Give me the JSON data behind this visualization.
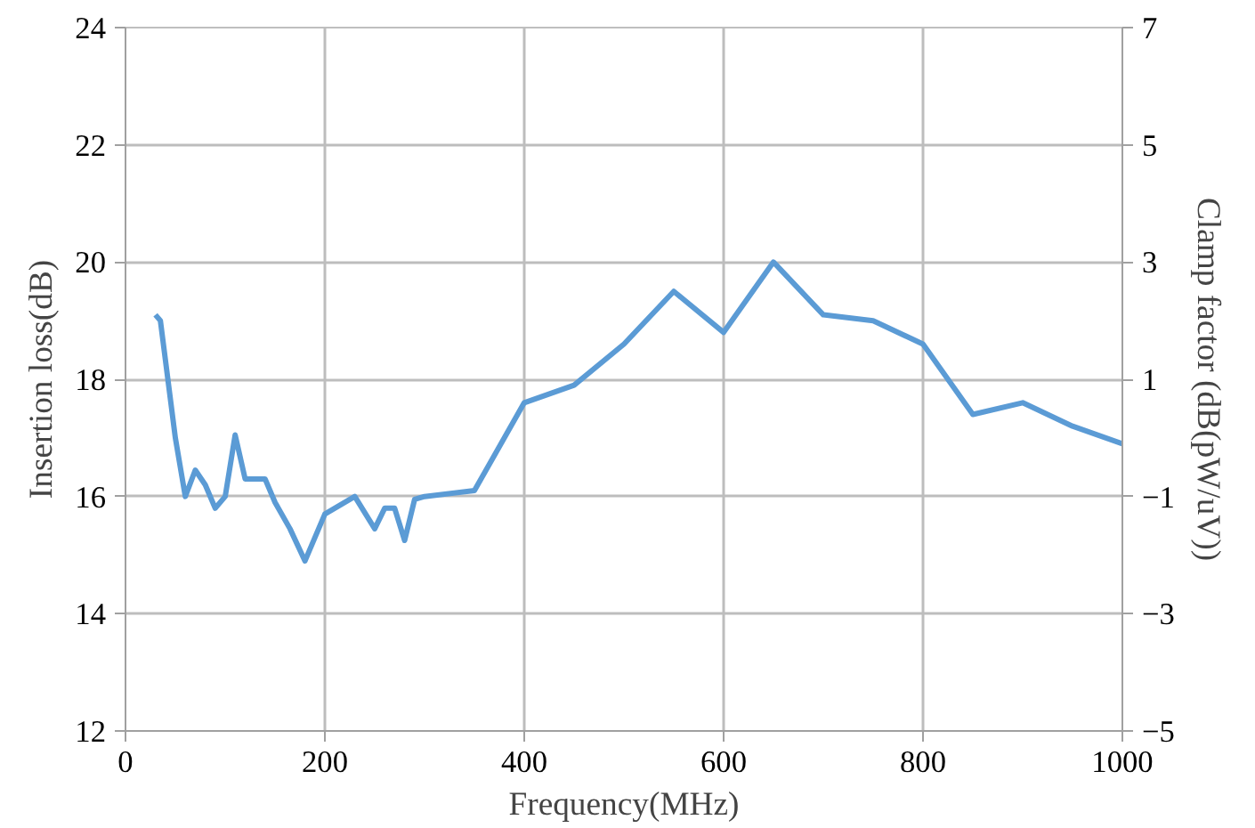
{
  "chart_data": {
    "type": "line",
    "xlabel": "Frequency(MHz)",
    "ylabel": "Insertion loss(dB)",
    "y2label": "Clamp factor (dB(pW/uV))",
    "x": [
      30,
      35,
      50,
      60,
      70,
      80,
      90,
      100,
      110,
      120,
      140,
      150,
      165,
      180,
      200,
      230,
      250,
      260,
      270,
      280,
      290,
      300,
      350,
      400,
      450,
      500,
      550,
      600,
      650,
      700,
      750,
      800,
      850,
      900,
      950,
      1000
    ],
    "series": [
      {
        "color": "#5b9bd5",
        "values": [
          19.1,
          19.0,
          17.0,
          16.0,
          16.45,
          16.2,
          15.8,
          16.0,
          17.05,
          16.3,
          16.3,
          15.9,
          15.45,
          14.9,
          15.7,
          16.0,
          15.45,
          15.8,
          15.8,
          15.25,
          15.95,
          16.0,
          16.1,
          17.6,
          17.9,
          18.6,
          19.5,
          18.8,
          20.0,
          19.1,
          19.0,
          18.6,
          17.4,
          17.6,
          17.2,
          16.9
        ]
      }
    ],
    "xlim": [
      0,
      1000
    ],
    "xticks": [
      0,
      200,
      400,
      600,
      800,
      1000
    ],
    "ylim": [
      12,
      24
    ],
    "yticks": [
      12,
      14,
      16,
      18,
      20,
      22,
      24
    ],
    "y2lim": [
      -5,
      7
    ],
    "y2ticks": [
      -5,
      -3,
      -1,
      1,
      3,
      5,
      7
    ],
    "grid": true,
    "marker": "none",
    "line_style": "solid"
  }
}
